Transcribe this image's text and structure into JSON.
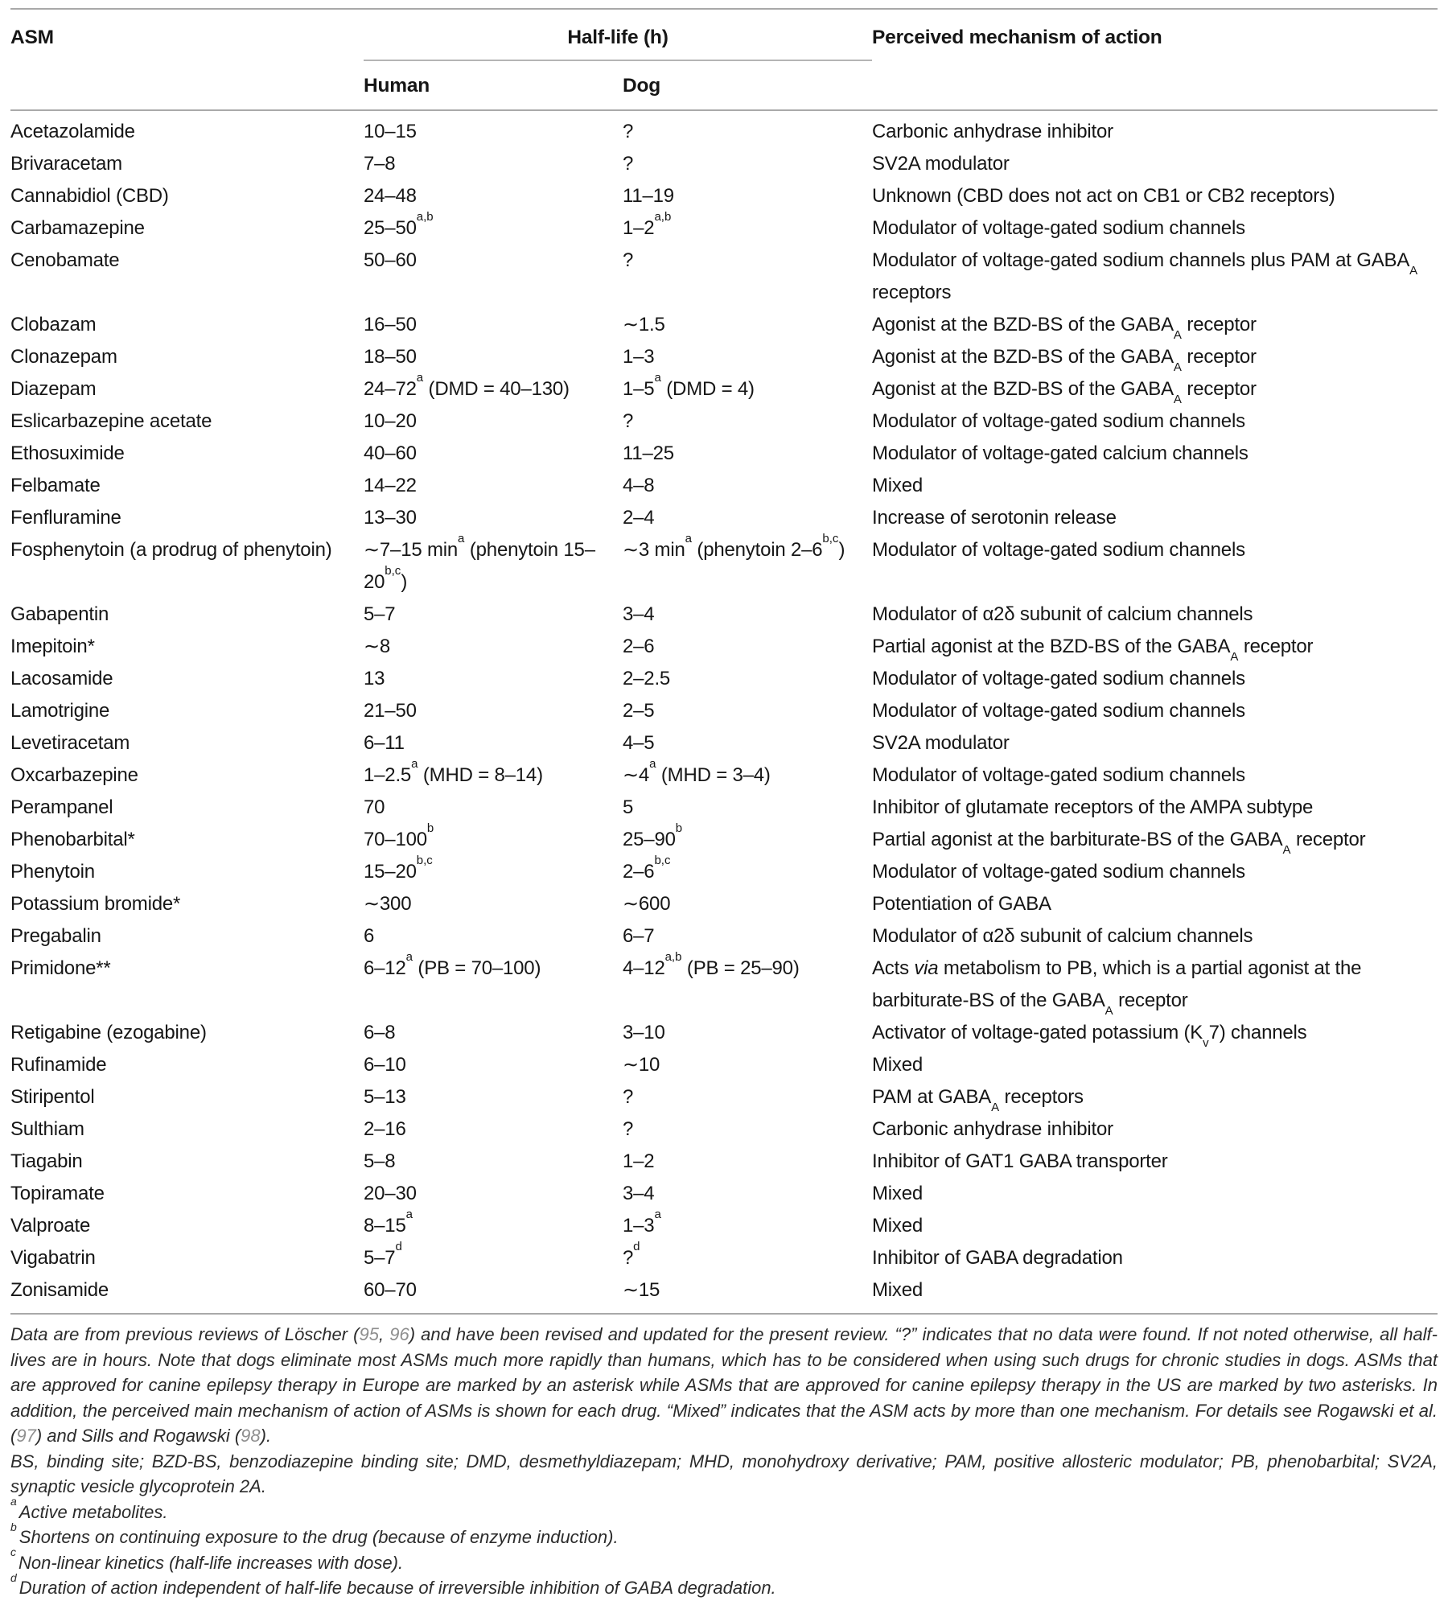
{
  "colors": {
    "background": "#ffffff",
    "text": "#161616",
    "footnote_text": "#2b2b2b",
    "rule": "#a9a9a9",
    "citation_link": "#8f8f8f"
  },
  "table": {
    "headers": {
      "asm": "ASM",
      "half_life_group": "Half-life (h)",
      "human": "Human",
      "dog": "Dog",
      "mechanism": "Perceived mechanism of action"
    },
    "rows": [
      {
        "asm": "Acetazolamide",
        "human": "10–15",
        "dog": "?",
        "mechanism": "Carbonic anhydrase inhibitor"
      },
      {
        "asm": "Brivaracetam",
        "human": "7–8",
        "dog": "?",
        "mechanism": "SV2A modulator"
      },
      {
        "asm": "Cannabidiol (CBD)",
        "human": "24–48",
        "dog": "11–19",
        "mechanism": "Unknown (CBD does not act on CB1 or CB2 receptors)"
      },
      {
        "asm": "Carbamazepine",
        "human": "25–50^{a,b}",
        "dog": "1–2^{a,b}",
        "mechanism": "Modulator of voltage-gated sodium channels"
      },
      {
        "asm": "Cenobamate",
        "human": "50–60",
        "dog": "?",
        "mechanism": "Modulator of voltage-gated sodium channels plus PAM at GABA_{A} receptors"
      },
      {
        "asm": "Clobazam",
        "human": "16–50",
        "dog": "∼1.5",
        "mechanism": "Agonist at the BZD-BS of the GABA_{A} receptor"
      },
      {
        "asm": "Clonazepam",
        "human": "18–50",
        "dog": "1–3",
        "mechanism": "Agonist at the BZD-BS of the GABA_{A} receptor"
      },
      {
        "asm": "Diazepam",
        "human": "24–72^{a} (DMD = 40–130)",
        "dog": "1–5^{a} (DMD = 4)",
        "mechanism": "Agonist at the BZD-BS of the GABA_{A} receptor"
      },
      {
        "asm": "Eslicarbazepine acetate",
        "human": "10–20",
        "dog": "?",
        "mechanism": "Modulator of voltage-gated sodium channels"
      },
      {
        "asm": "Ethosuximide",
        "human": "40–60",
        "dog": "11–25",
        "mechanism": "Modulator of voltage-gated calcium channels"
      },
      {
        "asm": "Felbamate",
        "human": "14–22",
        "dog": "4–8",
        "mechanism": "Mixed"
      },
      {
        "asm": "Fenfluramine",
        "human": "13–30",
        "dog": "2–4",
        "mechanism": "Increase of serotonin release"
      },
      {
        "asm": "Fosphenytoin (a prodrug of phenytoin)",
        "human": "∼7–15 min^{a} (phenytoin 15–20^{b,c})",
        "dog": "∼3 min^{a} (phenytoin 2–6^{b,c})",
        "mechanism": "Modulator of voltage-gated sodium channels"
      },
      {
        "asm": "Gabapentin",
        "human": "5–7",
        "dog": "3–4",
        "mechanism": "Modulator of α2δ subunit of calcium channels"
      },
      {
        "asm": "Imepitoin*",
        "human": "∼8",
        "dog": "2–6",
        "mechanism": "Partial agonist at the BZD-BS of the GABA_{A} receptor"
      },
      {
        "asm": "Lacosamide",
        "human": "13",
        "dog": "2–2.5",
        "mechanism": "Modulator of voltage-gated sodium channels"
      },
      {
        "asm": "Lamotrigine",
        "human": "21–50",
        "dog": "2–5",
        "mechanism": "Modulator of voltage-gated sodium channels"
      },
      {
        "asm": "Levetiracetam",
        "human": "6–11",
        "dog": "4–5",
        "mechanism": "SV2A modulator"
      },
      {
        "asm": "Oxcarbazepine",
        "human": "1–2.5^{a} (MHD = 8–14)",
        "dog": "∼4^{a} (MHD = 3–4)",
        "mechanism": "Modulator of voltage-gated sodium channels"
      },
      {
        "asm": "Perampanel",
        "human": "70",
        "dog": "5",
        "mechanism": "Inhibitor of glutamate receptors of the AMPA subtype"
      },
      {
        "asm": "Phenobarbital*",
        "human": "70–100^{b}",
        "dog": "25–90^{b}",
        "mechanism": "Partial agonist at the barbiturate-BS of the GABA_{A} receptor"
      },
      {
        "asm": "Phenytoin",
        "human": "15–20^{b,c}",
        "dog": "2–6^{b,c}",
        "mechanism": "Modulator of voltage-gated sodium channels"
      },
      {
        "asm": "Potassium bromide*",
        "human": "∼300",
        "dog": "∼600",
        "mechanism": "Potentiation of GABA"
      },
      {
        "asm": "Pregabalin",
        "human": "6",
        "dog": "6–7",
        "mechanism": "Modulator of α2δ subunit of calcium channels"
      },
      {
        "asm": "Primidone**",
        "human": "6–12^{a} (PB = 70–100)",
        "dog": "4–12^{a,b} (PB = 25–90)",
        "mechanism": "Acts *via* metabolism to PB, which is a partial agonist at the barbiturate-BS of the GABA_{A} receptor"
      },
      {
        "asm": "Retigabine (ezogabine)",
        "human": "6–8",
        "dog": "3–10",
        "mechanism": "Activator of voltage-gated potassium (K_{v}7) channels"
      },
      {
        "asm": "Rufinamide",
        "human": "6–10",
        "dog": "∼10",
        "mechanism": "Mixed"
      },
      {
        "asm": "Stiripentol",
        "human": "5–13",
        "dog": "?",
        "mechanism": "PAM at GABA_{A} receptors"
      },
      {
        "asm": "Sulthiam",
        "human": "2–16",
        "dog": "?",
        "mechanism": "Carbonic anhydrase inhibitor"
      },
      {
        "asm": "Tiagabin",
        "human": "5–8",
        "dog": "1–2",
        "mechanism": "Inhibitor of GAT1 GABA transporter"
      },
      {
        "asm": "Topiramate",
        "human": "20–30",
        "dog": "3–4",
        "mechanism": "Mixed"
      },
      {
        "asm": "Valproate",
        "human": "8–15^{a}",
        "dog": "1–3^{a}",
        "mechanism": "Mixed"
      },
      {
        "asm": "Vigabatrin",
        "human": "5–7^{d}",
        "dog": "?^{d}",
        "mechanism": "Inhibitor of GABA degradation"
      },
      {
        "asm": "Zonisamide",
        "human": "60–70",
        "dog": "∼15",
        "mechanism": "Mixed"
      }
    ]
  },
  "footnotes": {
    "general": "Data are from previous reviews of Löscher ([[95]], [[96]]) and have been revised and updated for the present review. “?” indicates that no data were found. If not noted otherwise, all half-lives are in hours. Note that dogs eliminate most ASMs much more rapidly than humans, which has to be considered when using such drugs for chronic studies in dogs. ASMs that are approved for canine epilepsy therapy in Europe are marked by an asterisk while ASMs that are approved for canine epilepsy therapy in the US are marked by two asterisks. In addition, the perceived main mechanism of action of ASMs is shown for each drug. “Mixed” indicates that the ASM acts by more than one mechanism. For details see Rogawski et al. ([[97]]) and Sills and Rogawski ([[98]]).",
    "abbreviations": "BS, binding site; BZD-BS, benzodiazepine binding site; DMD, desmethyldiazepam; MHD, monohydroxy derivative; PAM, positive allosteric modulator; PB, phenobarbital; SV2A, synaptic vesicle glycoprotein 2A.",
    "items": [
      {
        "marker": "a",
        "text": "Active metabolites."
      },
      {
        "marker": "b",
        "text": "Shortens on continuing exposure to the drug (because of enzyme induction)."
      },
      {
        "marker": "c",
        "text": "Non-linear kinetics (half-life increases with dose)."
      },
      {
        "marker": "d",
        "text": "Duration of action independent of half-life because of irreversible inhibition of GABA degradation."
      }
    ]
  }
}
